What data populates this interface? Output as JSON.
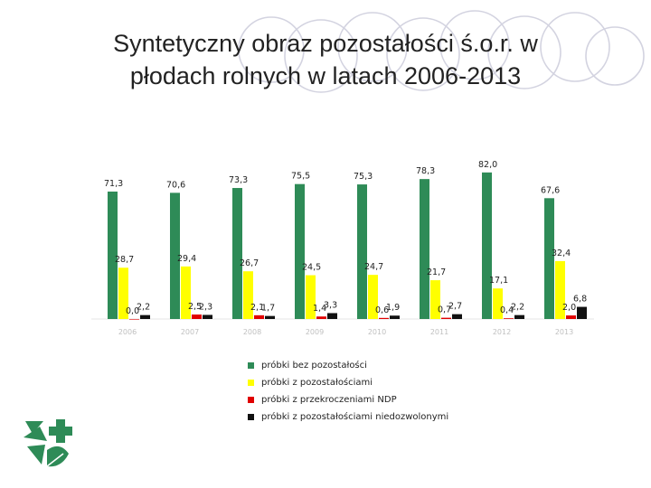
{
  "slide": {
    "title_line1": "Syntetyczny obraz pozostałości ś.o.r. w",
    "title_line2": "płodach rolnych w latach 2006-2013"
  },
  "chart_data": {
    "type": "bar",
    "categories": [
      "2006",
      "2007",
      "2008",
      "2009",
      "2010",
      "2011",
      "2012",
      "2013"
    ],
    "series": [
      {
        "name": "próbki bez pozostałości",
        "color": "#2e8b57",
        "values": [
          71.3,
          70.6,
          73.3,
          75.5,
          75.3,
          78.3,
          82.0,
          67.6
        ],
        "labels": [
          "71,3",
          "70,6",
          "73,3",
          "75,5",
          "75,3",
          "78,3",
          "82,0",
          "67,6"
        ]
      },
      {
        "name": "próbki z pozostałościami",
        "color": "#ffff00",
        "values": [
          28.7,
          29.4,
          26.7,
          24.5,
          24.7,
          21.7,
          17.1,
          32.4
        ],
        "labels": [
          "28,7",
          "29,4",
          "26,7",
          "24,5",
          "24,7",
          "21,7",
          "17,1",
          "32,4"
        ]
      },
      {
        "name": "próbki z przekroczeniami NDP",
        "color": "#e00000",
        "values": [
          0.0,
          2.5,
          2.1,
          1.4,
          0.6,
          0.7,
          0.4,
          2.0
        ],
        "labels": [
          "0,0",
          "2,5",
          "2,1",
          "1,4",
          "0,6",
          "0,7",
          "0,4",
          "2,0"
        ]
      },
      {
        "name": "próbki z pozostałościami niedozwolonymi",
        "color": "#111111",
        "values": [
          2.2,
          2.3,
          1.7,
          3.3,
          1.9,
          2.7,
          2.2,
          6.8
        ],
        "labels": [
          "2,2",
          "2,3",
          "1,7",
          "3,3",
          "1,9",
          "2,7",
          "2,2",
          "6,8"
        ]
      }
    ],
    "ylim": [
      0,
      90
    ],
    "legend_position": "bottom"
  }
}
